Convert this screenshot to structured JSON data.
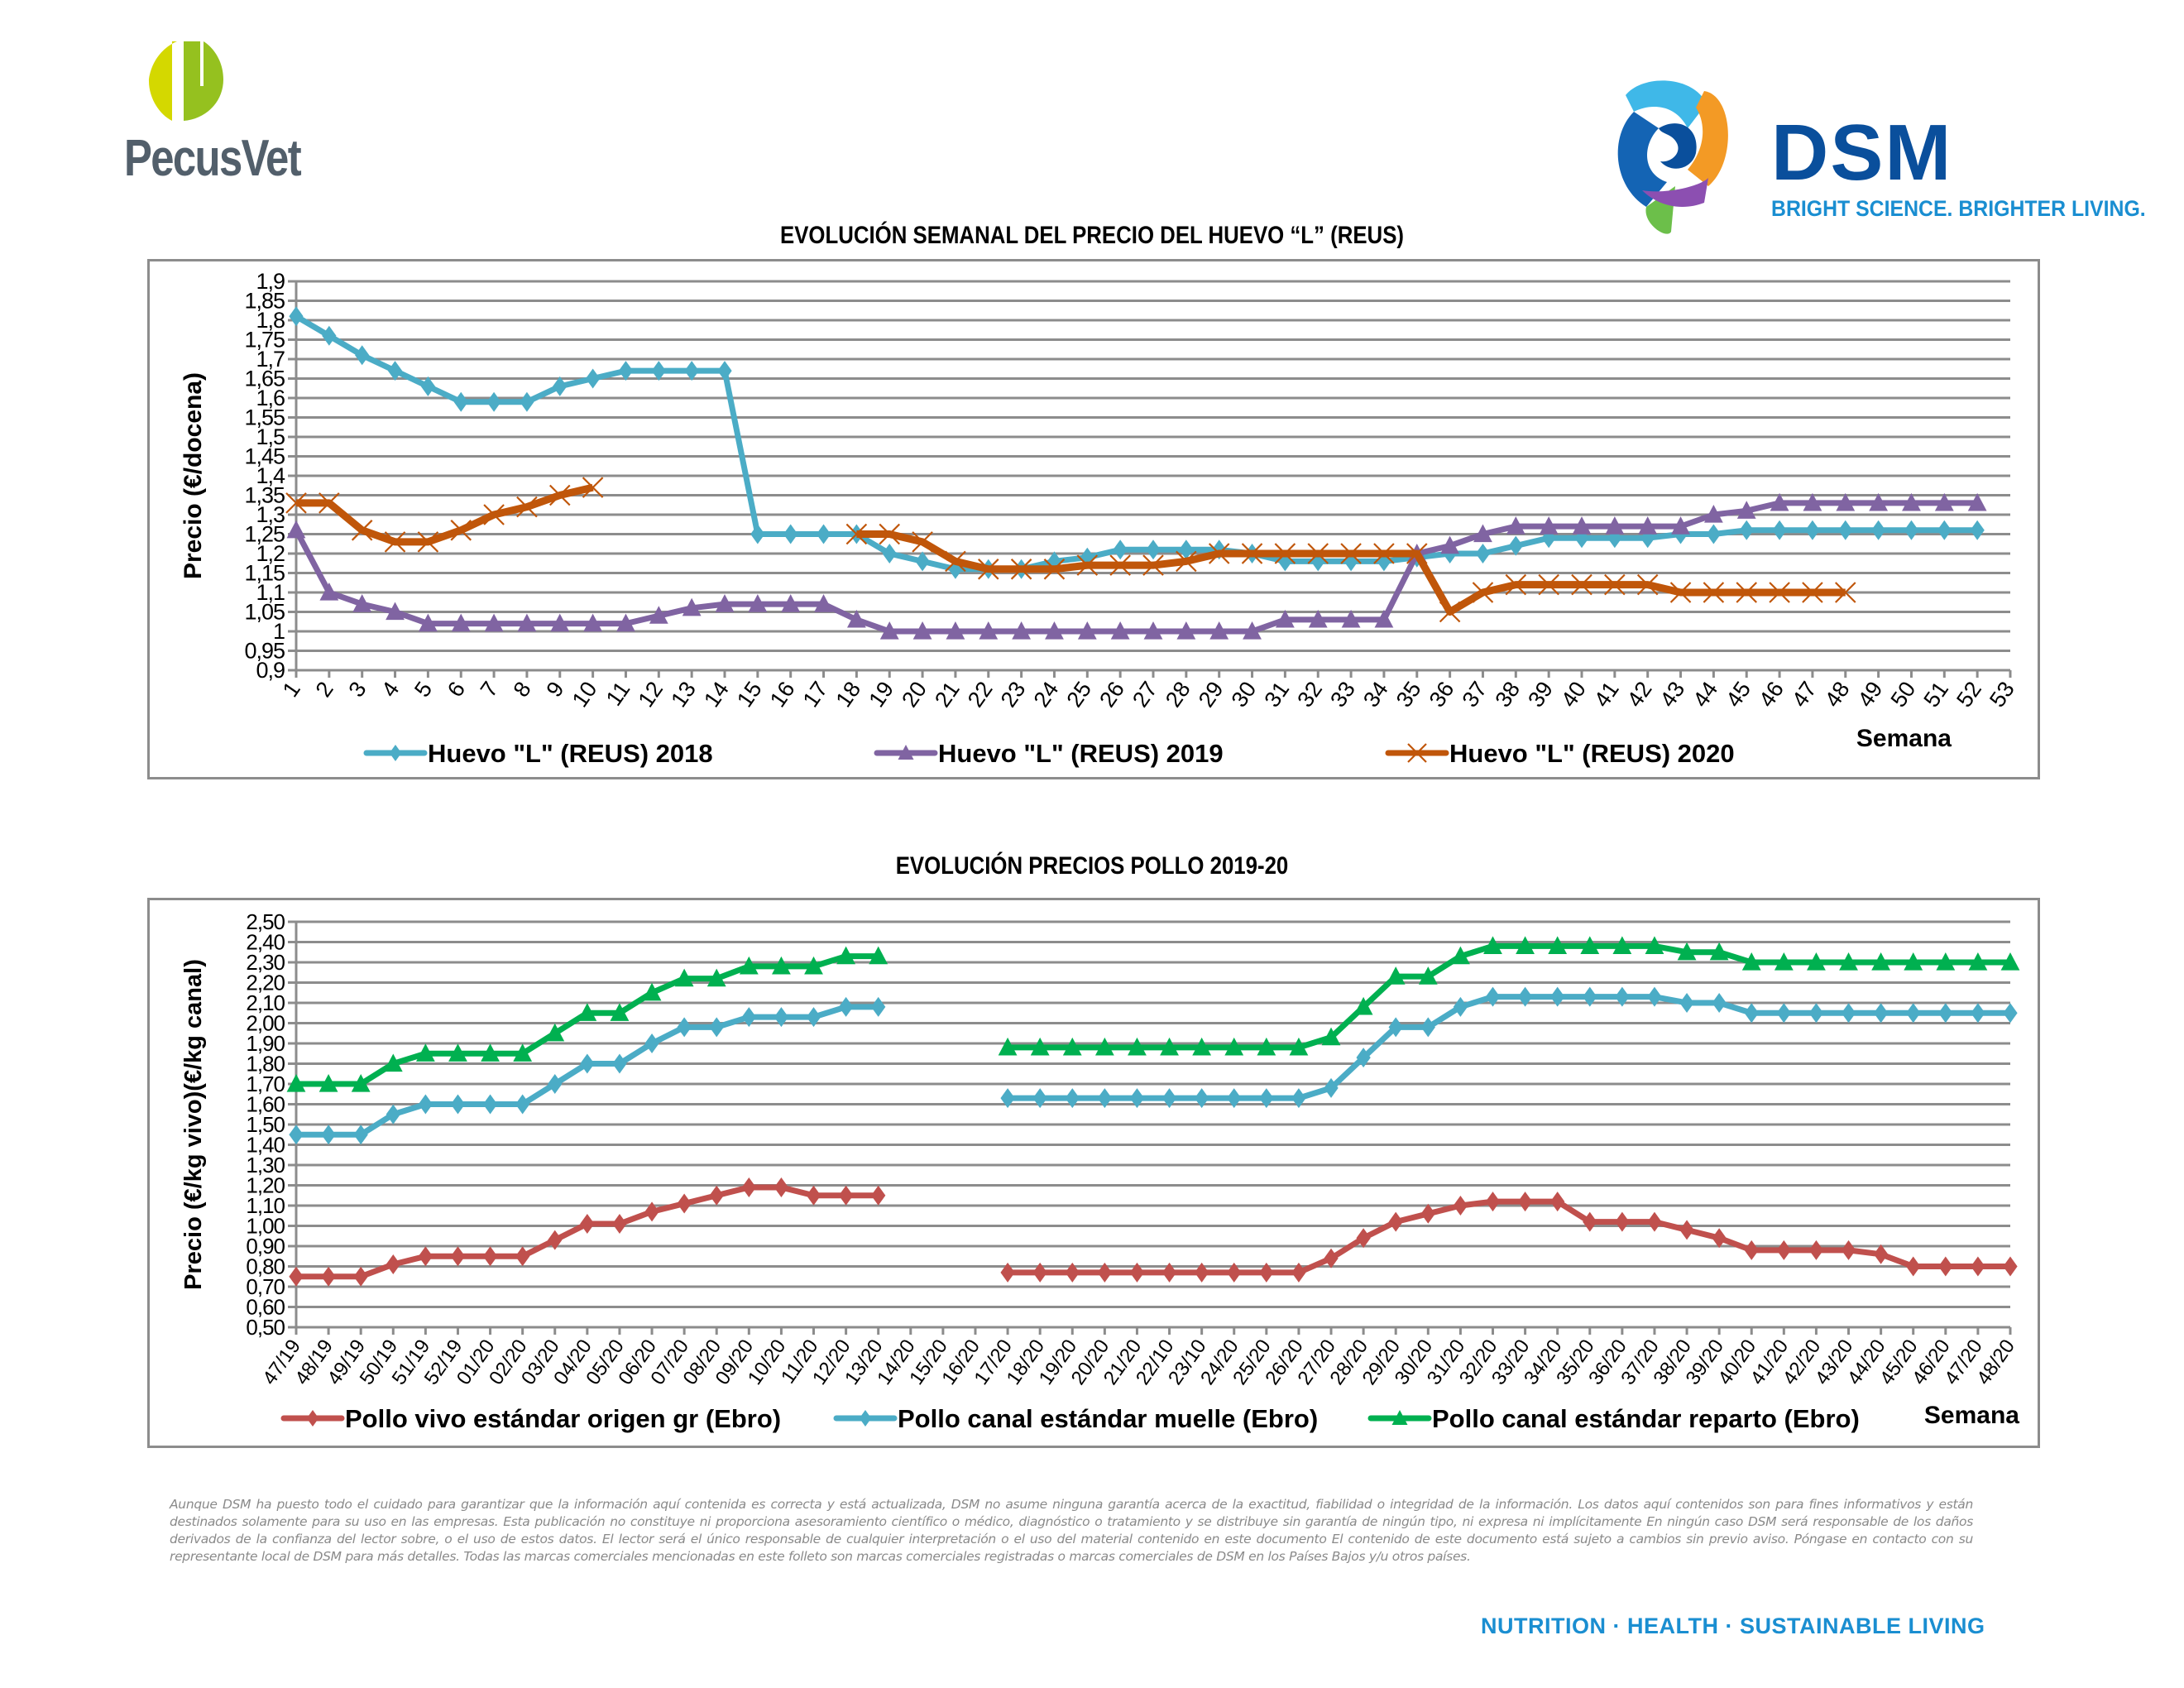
{
  "header": {
    "left_logo_text": "PecusVet",
    "right_logo_text": "DSM",
    "right_logo_tagline": "BRIGHT SCIENCE. BRIGHTER LIVING."
  },
  "colors": {
    "pecusvet_text": "#525f6b",
    "pecusvet_yellow": "#d4d800",
    "pecusvet_green": "#95c11f",
    "dsm_blue": "#0a4f9c",
    "dsm_light_blue": "#1a8ed1",
    "grid": "#8c8c8c"
  },
  "chart_data": [
    {
      "type": "line",
      "title": "EVOLUCIÓN SEMANAL DEL PRECIO DEL HUEVO “L” (REUS)",
      "xlabel": "Semana",
      "ylabel": "Precio (€/docena)",
      "ylim": [
        0.9,
        1.9
      ],
      "ytick_step": 0.05,
      "yticks": [
        "0,9",
        "0,95",
        "1",
        "1,05",
        "1,1",
        "1,15",
        "1,2",
        "1,25",
        "1,3",
        "1,35",
        "1,4",
        "1,45",
        "1,5",
        "1,55",
        "1,6",
        "1,65",
        "1,7",
        "1,75",
        "1,8",
        "1,85",
        "1,9"
      ],
      "grid": true,
      "legend": "bottom",
      "categories": [
        "1",
        "2",
        "3",
        "4",
        "5",
        "6",
        "7",
        "8",
        "9",
        "10",
        "11",
        "12",
        "13",
        "14",
        "15",
        "16",
        "17",
        "18",
        "19",
        "20",
        "21",
        "22",
        "23",
        "24",
        "25",
        "26",
        "27",
        "28",
        "29",
        "30",
        "31",
        "32",
        "33",
        "34",
        "35",
        "36",
        "37",
        "38",
        "39",
        "40",
        "41",
        "42",
        "43",
        "44",
        "45",
        "46",
        "47",
        "48",
        "49",
        "50",
        "51",
        "52",
        "53"
      ],
      "series": [
        {
          "name": "Huevo \"L\" (REUS) 2018",
          "color": "#4bacc6",
          "marker": "diamond",
          "values": [
            1.81,
            1.76,
            1.71,
            1.67,
            1.63,
            1.59,
            1.59,
            1.59,
            1.63,
            1.65,
            1.67,
            1.67,
            1.67,
            1.67,
            1.25,
            1.25,
            1.25,
            1.25,
            1.2,
            1.18,
            1.16,
            1.16,
            1.16,
            1.18,
            1.19,
            1.21,
            1.21,
            1.21,
            1.21,
            1.2,
            1.18,
            1.18,
            1.18,
            1.18,
            1.19,
            1.2,
            1.2,
            1.22,
            1.24,
            1.24,
            1.24,
            1.24,
            1.25,
            1.25,
            1.26,
            1.26,
            1.26,
            1.26,
            1.26,
            1.26,
            1.26,
            1.26,
            null
          ]
        },
        {
          "name": "Huevo \"L\" (REUS) 2019",
          "color": "#8064a2",
          "marker": "triangle",
          "values": [
            1.26,
            1.1,
            1.07,
            1.05,
            1.02,
            1.02,
            1.02,
            1.02,
            1.02,
            1.02,
            1.02,
            1.04,
            1.06,
            1.07,
            1.07,
            1.07,
            1.07,
            1.03,
            1.0,
            1.0,
            1.0,
            1.0,
            1.0,
            1.0,
            1.0,
            1.0,
            1.0,
            1.0,
            1.0,
            1.0,
            1.03,
            1.03,
            1.03,
            1.03,
            1.2,
            1.22,
            1.25,
            1.27,
            1.27,
            1.27,
            1.27,
            1.27,
            1.27,
            1.3,
            1.31,
            1.33,
            1.33,
            1.33,
            1.33,
            1.33,
            1.33,
            1.33,
            null
          ]
        },
        {
          "name": "Huevo \"L\" (REUS) 2020",
          "color": "#c0560a",
          "marker": "x",
          "values": [
            1.33,
            1.33,
            1.26,
            1.23,
            1.23,
            1.26,
            1.3,
            1.32,
            1.35,
            1.37,
            null,
            null,
            null,
            null,
            null,
            null,
            null,
            1.25,
            1.25,
            1.23,
            1.18,
            1.16,
            1.16,
            1.16,
            1.17,
            1.17,
            1.17,
            1.18,
            1.2,
            1.2,
            1.2,
            1.2,
            1.2,
            1.2,
            1.2,
            1.05,
            1.1,
            1.12,
            1.12,
            1.12,
            1.12,
            1.12,
            1.1,
            1.1,
            1.1,
            1.1,
            1.1,
            1.1,
            null,
            null,
            null,
            null,
            null
          ]
        }
      ]
    },
    {
      "type": "line",
      "title": "EVOLUCIÓN PRECIOS POLLO 2019-20",
      "xlabel": "Semana",
      "ylabel": "Precio (€/kg vivo)(€/kg canal)",
      "ylim": [
        0.5,
        2.5
      ],
      "ytick_step": 0.1,
      "yticks": [
        "0,50",
        "0,60",
        "0,70",
        "0,80",
        "0,90",
        "1,00",
        "1,10",
        "1,20",
        "1,30",
        "1,40",
        "1,50",
        "1,60",
        "1,70",
        "1,80",
        "1,90",
        "2,00",
        "2,10",
        "2,20",
        "2,30",
        "2,40",
        "2,50"
      ],
      "grid": true,
      "legend": "bottom",
      "categories": [
        "47/19",
        "48/19",
        "49/19",
        "50/19",
        "51/19",
        "52/19",
        "01/20",
        "02/20",
        "03/20",
        "04/20",
        "05/20",
        "06/20",
        "07/20",
        "08/20",
        "09/20",
        "10/20",
        "11/20",
        "12/20",
        "13/20",
        "14/20",
        "15/20",
        "16/20",
        "17/20",
        "18/20",
        "19/20",
        "20/20",
        "21/20",
        "22/10",
        "23/10",
        "24/20",
        "25/20",
        "26/20",
        "27/20",
        "28/20",
        "29/20",
        "30/20",
        "31/20",
        "32/20",
        "33/20",
        "34/20",
        "35/20",
        "36/20",
        "37/20",
        "38/20",
        "39/20",
        "40/20",
        "41/20",
        "42/20",
        "43/20",
        "44/20",
        "45/20",
        "46/20",
        "47/20",
        "48/20"
      ],
      "series": [
        {
          "name": "Pollo vivo estándar origen gr (Ebro)",
          "color": "#c0504d",
          "marker": "diamond",
          "values": [
            0.75,
            0.75,
            0.75,
            0.81,
            0.85,
            0.85,
            0.85,
            0.85,
            0.93,
            1.01,
            1.01,
            1.07,
            1.11,
            1.15,
            1.19,
            1.19,
            1.15,
            1.15,
            1.15,
            null,
            null,
            null,
            0.77,
            0.77,
            0.77,
            0.77,
            0.77,
            0.77,
            0.77,
            0.77,
            0.77,
            0.77,
            0.84,
            0.94,
            1.02,
            1.06,
            1.1,
            1.12,
            1.12,
            1.12,
            1.02,
            1.02,
            1.02,
            0.98,
            0.94,
            0.88,
            0.88,
            0.88,
            0.88,
            0.86,
            0.8,
            0.8,
            0.8,
            0.8
          ]
        },
        {
          "name": "Pollo canal estándar muelle (Ebro)",
          "color": "#4bacc6",
          "marker": "diamond",
          "values": [
            1.45,
            1.45,
            1.45,
            1.55,
            1.6,
            1.6,
            1.6,
            1.6,
            1.7,
            1.8,
            1.8,
            1.9,
            1.98,
            1.98,
            2.03,
            2.03,
            2.03,
            2.08,
            2.08,
            null,
            null,
            null,
            1.63,
            1.63,
            1.63,
            1.63,
            1.63,
            1.63,
            1.63,
            1.63,
            1.63,
            1.63,
            1.68,
            1.83,
            1.98,
            1.98,
            2.08,
            2.13,
            2.13,
            2.13,
            2.13,
            2.13,
            2.13,
            2.1,
            2.1,
            2.05,
            2.05,
            2.05,
            2.05,
            2.05,
            2.05,
            2.05,
            2.05,
            2.05
          ]
        },
        {
          "name": "Pollo canal estándar reparto (Ebro)",
          "color": "#00b050",
          "marker": "triangle",
          "values": [
            1.7,
            1.7,
            1.7,
            1.8,
            1.85,
            1.85,
            1.85,
            1.85,
            1.95,
            2.05,
            2.05,
            2.15,
            2.22,
            2.22,
            2.28,
            2.28,
            2.28,
            2.33,
            2.33,
            null,
            null,
            null,
            1.88,
            1.88,
            1.88,
            1.88,
            1.88,
            1.88,
            1.88,
            1.88,
            1.88,
            1.88,
            1.93,
            2.08,
            2.23,
            2.23,
            2.33,
            2.38,
            2.38,
            2.38,
            2.38,
            2.38,
            2.38,
            2.35,
            2.35,
            2.3,
            2.3,
            2.3,
            2.3,
            2.3,
            2.3,
            2.3,
            2.3,
            2.3
          ]
        }
      ]
    }
  ],
  "footer": {
    "disclaimer": "Aunque DSM ha puesto todo el cuidado para garantizar que la información aquí contenida es correcta y está actualizada, DSM no asume ninguna garantía acerca de la exactitud, fiabilidad o integridad de la información. Los datos aquí contenidos son para fines informativos y están destinados solamente para su uso en las empresas. Esta publicación no constituye ni proporciona asesoramiento científico o médico, diagnóstico o tratamiento y se distribuye sin garantía de ningún tipo, ni expresa ni implícitamente En ningún caso DSM será responsable de los daños derivados de la confianza del lector sobre, o el uso de estos datos. El lector será el único responsable de cualquier interpretación o el uso del material contenido en este documento El contenido de este documento está sujeto a cambios sin previo aviso. Póngase en contacto con su representante local de DSM para más detalles. Todas las marcas comerciales mencionadas en este folleto son marcas comerciales registradas o marcas comerciales de DSM en los Países Bajos y/u otros países.",
    "tagline": "NUTRITION  ·  HEALTH  ·  SUSTAINABLE LIVING"
  }
}
